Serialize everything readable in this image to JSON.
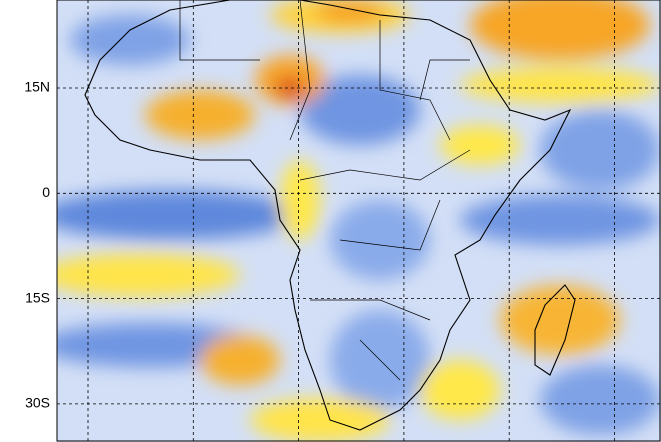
{
  "map": {
    "lat_labels": [
      "15N",
      "0",
      "15S",
      "30S"
    ]
  }
}
